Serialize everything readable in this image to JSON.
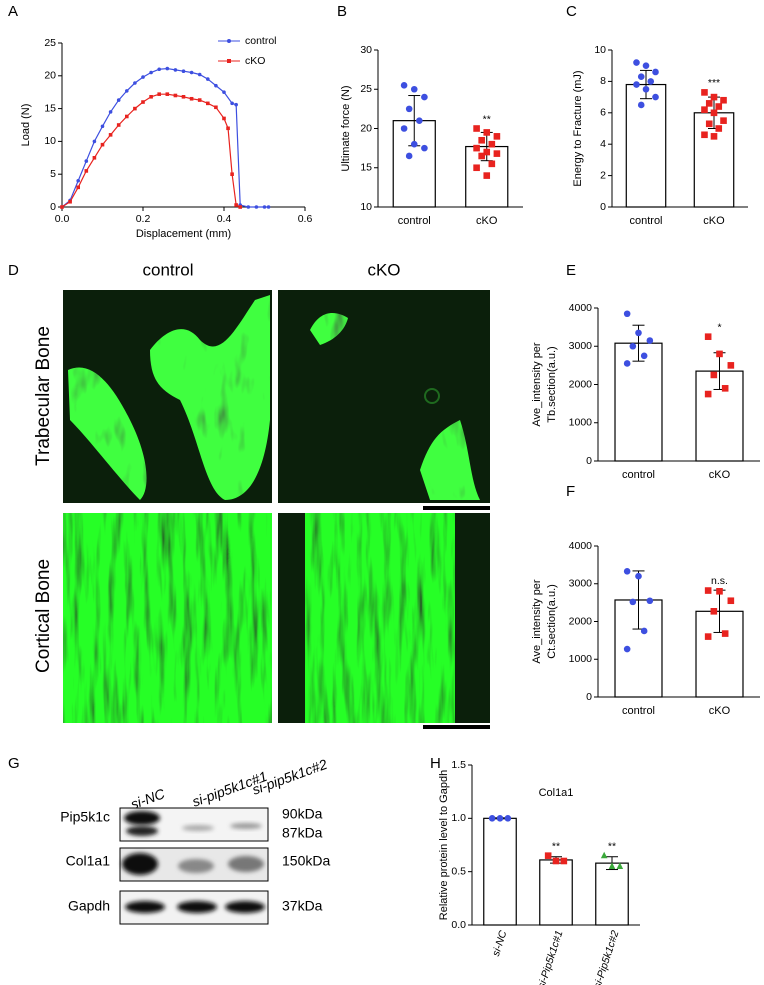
{
  "chart_data": [
    {
      "type": "line",
      "panel_label": "A",
      "xlabel": "Displacement (mm)",
      "ylabel": "Load (N)",
      "xlim": [
        0,
        0.6
      ],
      "xticks": [
        {
          "value": 0,
          "label": "0.0"
        },
        {
          "value": 0.2,
          "label": "0.2"
        },
        {
          "value": 0.4,
          "label": "0.4"
        },
        {
          "value": 0.6,
          "label": "0.6"
        }
      ],
      "ylim": [
        0,
        25
      ],
      "yticks": [
        0,
        5,
        10,
        15,
        20,
        25
      ],
      "legend": "upper right",
      "series": [
        {
          "name": "control",
          "color": "#3d4fe0",
          "marker": "circle",
          "x": [
            0,
            0.02,
            0.04,
            0.06,
            0.08,
            0.1,
            0.12,
            0.14,
            0.16,
            0.18,
            0.2,
            0.22,
            0.24,
            0.26,
            0.28,
            0.3,
            0.32,
            0.34,
            0.36,
            0.38,
            0.4,
            0.42,
            0.43,
            0.44,
            0.46,
            0.48,
            0.5,
            0.51
          ],
          "values": [
            0,
            1,
            4,
            7,
            10,
            12.3,
            14.5,
            16.3,
            17.7,
            18.9,
            19.8,
            20.5,
            21,
            21.1,
            20.9,
            20.7,
            20.5,
            20.2,
            19.5,
            18.5,
            17.5,
            15.8,
            15.6,
            0.3,
            0,
            0,
            0,
            0
          ]
        },
        {
          "name": "cKO",
          "color": "#e8231f",
          "marker": "square",
          "x": [
            0,
            0.02,
            0.04,
            0.06,
            0.08,
            0.1,
            0.12,
            0.14,
            0.16,
            0.18,
            0.2,
            0.22,
            0.24,
            0.26,
            0.28,
            0.3,
            0.32,
            0.34,
            0.36,
            0.38,
            0.4,
            0.41,
            0.42,
            0.43,
            0.44
          ],
          "values": [
            0,
            0.8,
            3,
            5.5,
            7.5,
            9.5,
            11,
            12.5,
            13.8,
            15,
            16,
            16.8,
            17.2,
            17.2,
            17,
            16.8,
            16.5,
            16.3,
            15.8,
            15.2,
            13.5,
            12,
            5,
            0.3,
            0
          ]
        }
      ]
    },
    {
      "type": "bar",
      "panel_label": "B",
      "ylabel": "Ultimate force (N)",
      "ylim": [
        10,
        30
      ],
      "yticks": [
        10,
        15,
        20,
        25,
        30
      ],
      "categories": [
        "control",
        "cKO"
      ],
      "values": [
        21,
        17.7
      ],
      "errors": [
        3.2,
        1.8
      ],
      "points": [
        [
          25.5,
          25,
          24,
          22.5,
          21,
          20,
          18,
          17.5,
          16.5
        ],
        [
          20,
          19.5,
          19,
          18.5,
          18,
          17.5,
          17,
          16.8,
          16.5,
          15.5,
          15,
          14
        ]
      ],
      "colors": [
        "#3d4fe0",
        "#e8231f"
      ],
      "markers": [
        "circle",
        "square"
      ],
      "annotations": [
        {
          "category": "cKO",
          "text": "**"
        }
      ]
    },
    {
      "type": "bar",
      "panel_label": "C",
      "ylabel": "Energy to Fracture (mJ)",
      "ylim": [
        0,
        10
      ],
      "yticks": [
        0,
        2,
        4,
        6,
        8,
        10
      ],
      "categories": [
        "control",
        "cKO"
      ],
      "values": [
        7.8,
        6.0
      ],
      "errors": [
        0.9,
        1.0
      ],
      "points": [
        [
          9.2,
          9,
          8.6,
          8.3,
          8,
          7.8,
          7.5,
          7,
          6.5
        ],
        [
          7.3,
          7,
          6.8,
          6.6,
          6.4,
          6.2,
          6,
          5.5,
          5.3,
          5,
          4.6,
          4.5
        ]
      ],
      "colors": [
        "#3d4fe0",
        "#e8231f"
      ],
      "markers": [
        "circle",
        "square"
      ],
      "annotations": [
        {
          "category": "cKO",
          "text": "***"
        }
      ]
    },
    {
      "type": "bar",
      "panel_label": "E",
      "ylabel": [
        "Ave_intensity per",
        "Tb.section(a.u.)"
      ],
      "ylim": [
        0,
        4000
      ],
      "yticks": [
        0,
        1000,
        2000,
        3000,
        4000
      ],
      "categories": [
        "control",
        "cKO"
      ],
      "values": [
        3080,
        2350
      ],
      "errors": [
        470,
        480
      ],
      "points": [
        [
          3850,
          3350,
          3150,
          3000,
          2750,
          2550
        ],
        [
          3250,
          2800,
          2500,
          2250,
          1900,
          1750
        ]
      ],
      "colors": [
        "#3d4fe0",
        "#e8231f"
      ],
      "markers": [
        "circle",
        "square"
      ],
      "annotations": [
        {
          "category": "cKO",
          "text": "*"
        }
      ]
    },
    {
      "type": "bar",
      "panel_label": "F",
      "ylabel": [
        "Ave_intensity per",
        "Ct.section(a.u.)"
      ],
      "ylim": [
        0,
        4000
      ],
      "yticks": [
        0,
        1000,
        2000,
        3000,
        4000
      ],
      "categories": [
        "control",
        "cKO"
      ],
      "values": [
        2570,
        2270
      ],
      "errors": [
        770,
        560
      ],
      "points": [
        [
          3330,
          3200,
          2550,
          2520,
          1750,
          1270
        ],
        [
          2820,
          2800,
          2550,
          2270,
          1680,
          1600
        ]
      ],
      "colors": [
        "#3d4fe0",
        "#e8231f"
      ],
      "markers": [
        "circle",
        "square"
      ],
      "annotations": [
        {
          "category": "cKO",
          "text": "n.s."
        }
      ]
    },
    {
      "type": "bar",
      "panel_label": "H",
      "title": "Col1a1",
      "ylabel": "Relative protein level to Gapdh",
      "ylim": [
        0,
        1.5
      ],
      "yticks": [
        {
          "value": 0,
          "label": "0.0"
        },
        {
          "value": 0.5,
          "label": "0.5"
        },
        {
          "value": 1,
          "label": "1.0"
        },
        {
          "value": 1.5,
          "label": "1.5"
        }
      ],
      "categories": [
        "si-NC",
        "si-Pip5k1c#1",
        "si-Pip5k1c#2"
      ],
      "values": [
        1.0,
        0.61,
        0.58
      ],
      "errors": [
        0.005,
        0.03,
        0.06
      ],
      "points": [
        [
          1,
          1,
          1
        ],
        [
          0.65,
          0.6,
          0.6
        ],
        [
          0.65,
          0.55,
          0.55
        ]
      ],
      "colors": [
        "#3d4fe0",
        "#e8231f",
        "#3aa83a"
      ],
      "markers": [
        "circle",
        "square",
        "triangle"
      ],
      "annotations": [
        {
          "category": "si-Pip5k1c#1",
          "text": "**"
        },
        {
          "category": "si-Pip5k1c#2",
          "text": "**"
        }
      ]
    }
  ],
  "micrographs": {
    "panel_label": "D",
    "columns": [
      "control",
      "cKO"
    ],
    "rows": [
      "Trabecular Bone",
      "Cortical Bone"
    ]
  },
  "western_blot": {
    "panel_label": "G",
    "lanes": [
      "si-NC",
      "si-pip5k1c#1",
      "si-pip5k1c#2"
    ],
    "rows": [
      {
        "protein": "Pip5k1c",
        "sizes": [
          "90kDa",
          "87kDa"
        ]
      },
      {
        "protein": "Col1a1",
        "sizes": [
          "150kDa"
        ]
      },
      {
        "protein": "Gapdh",
        "sizes": [
          "37kDa"
        ]
      }
    ]
  }
}
